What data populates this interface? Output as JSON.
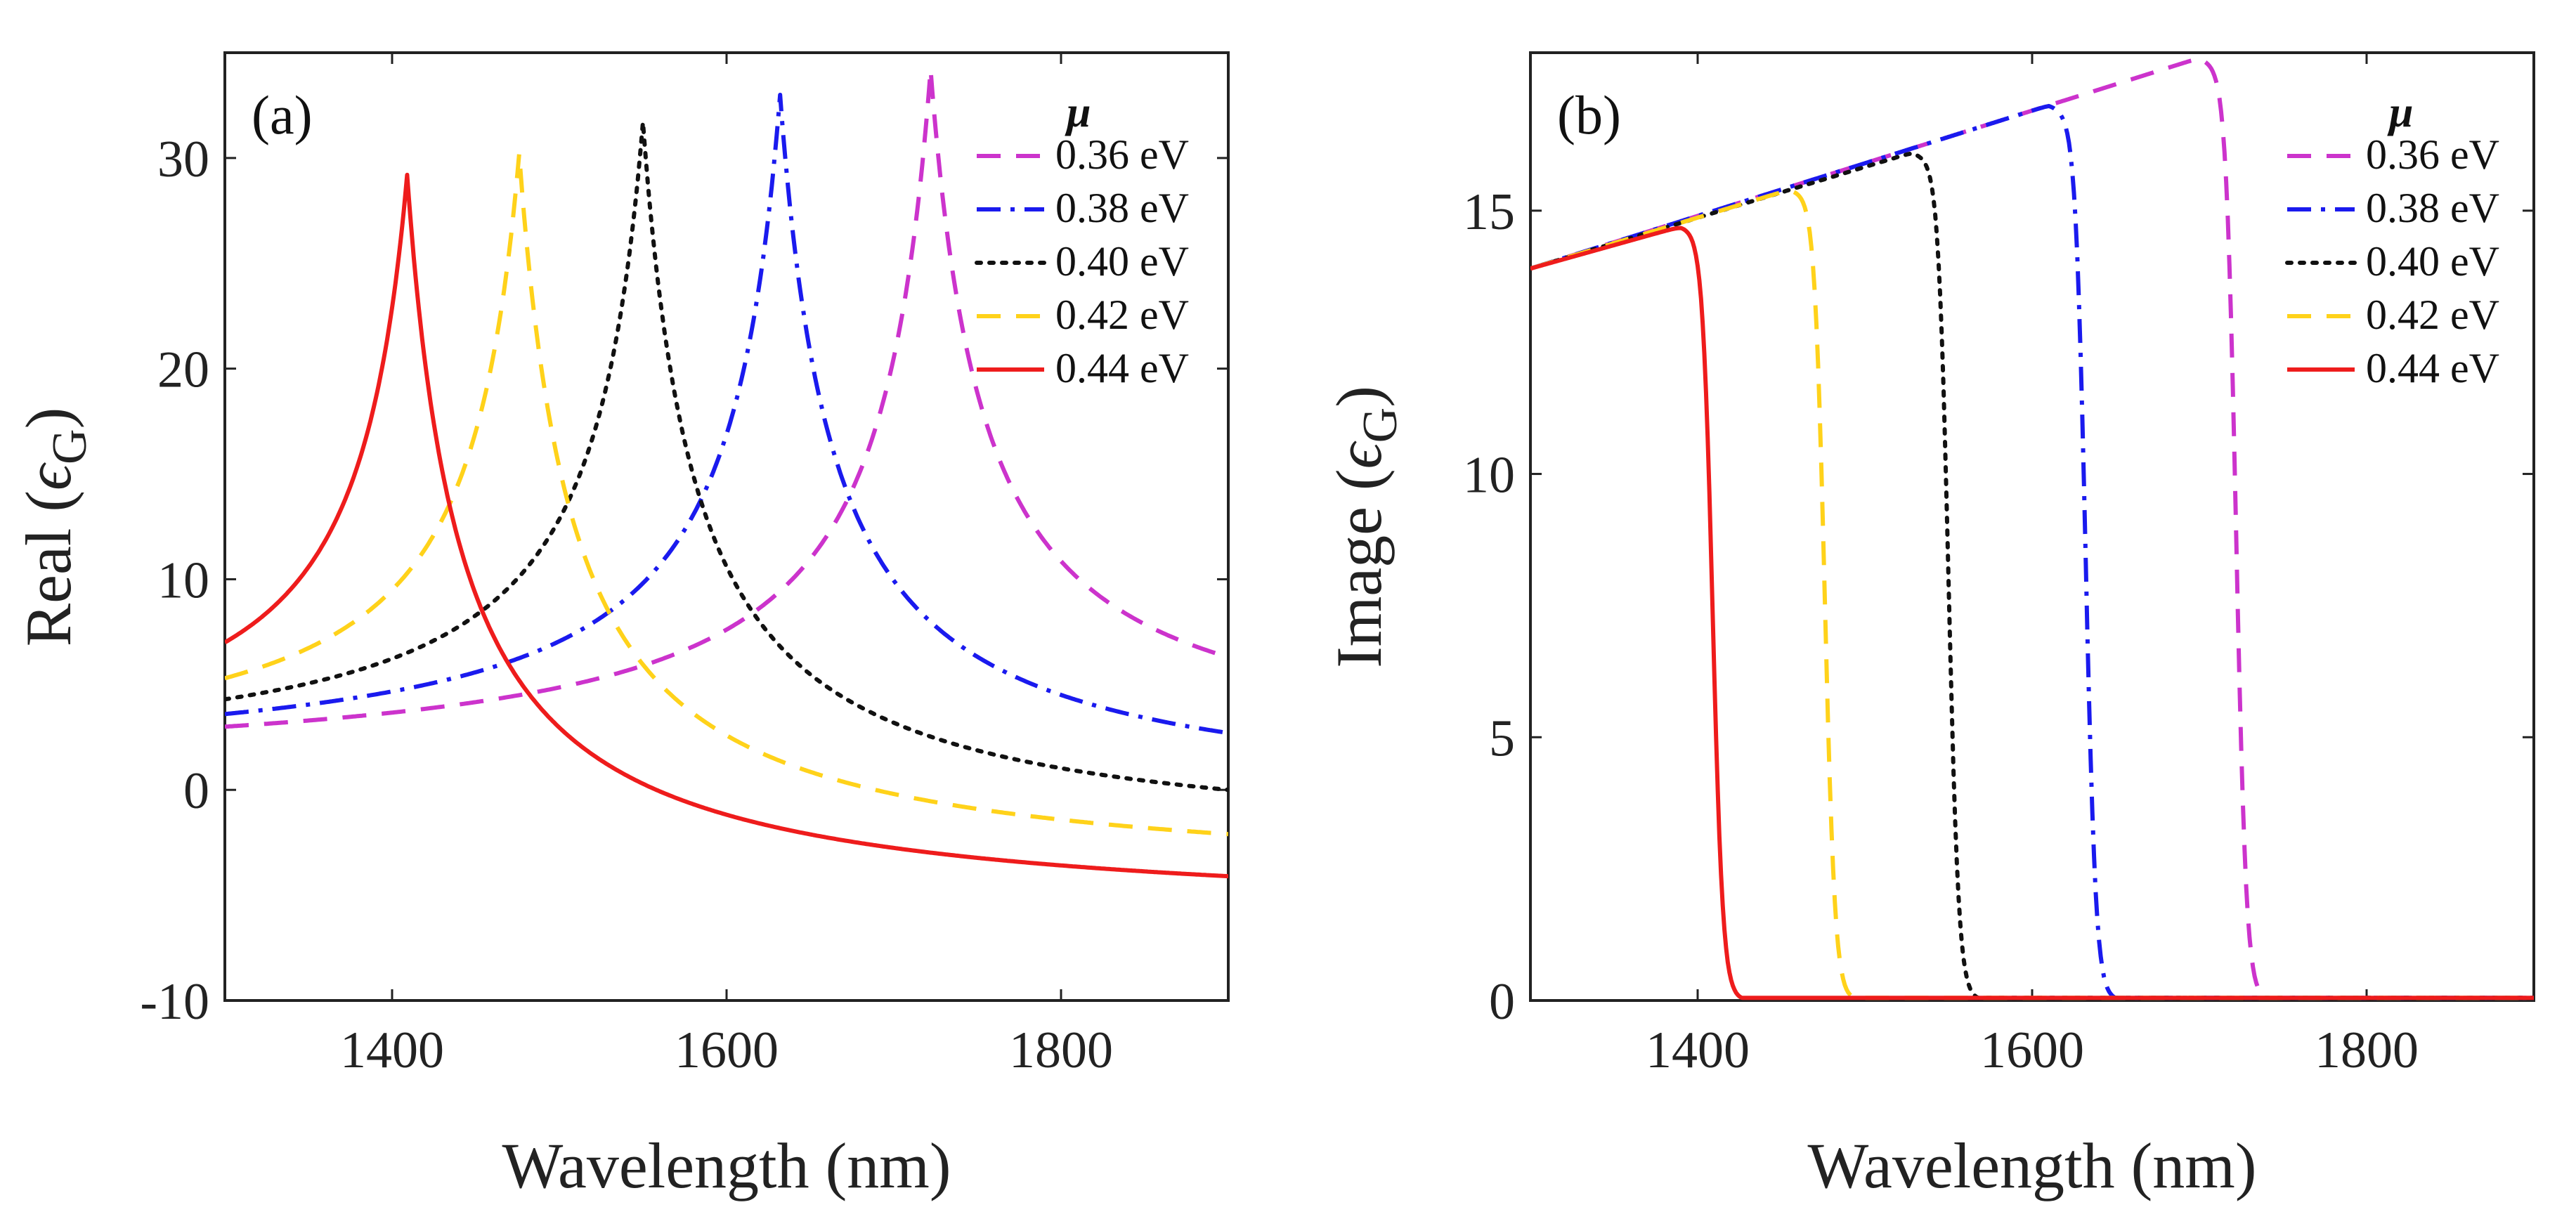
{
  "chart_data": [
    {
      "panel": "(a)",
      "type": "line",
      "xlabel": "Wavelength (nm)",
      "ylabel_main": "Real (",
      "ylabel_symbol": "ϵ",
      "ylabel_sub": "G",
      "ylabel_close": ")",
      "xlim": [
        1300,
        1900
      ],
      "ylim": [
        -10,
        35
      ],
      "xticks": [
        1400,
        1600,
        1800
      ],
      "yticks": [
        -10,
        0,
        10,
        20,
        30
      ],
      "ytick_labels": [
        "-10",
        "0",
        "10",
        "20",
        "30"
      ],
      "legend_title": "μ",
      "series": [
        {
          "name": "0.36 eV",
          "color": "#cc33cc",
          "dash": "dash",
          "peak_x": 1722,
          "peak_y": 34.2,
          "start_y": 3.0,
          "end_y": 6.3
        },
        {
          "name": "0.38 eV",
          "color": "#1a1aee",
          "dash": "dashdot",
          "peak_x": 1632,
          "peak_y": 33.0,
          "start_y": 3.6,
          "end_y": 2.7
        },
        {
          "name": "0.40 eV",
          "color": "#111111",
          "dash": "dot",
          "peak_x": 1550,
          "peak_y": 31.7,
          "start_y": 4.3,
          "end_y": 0.0
        },
        {
          "name": "0.42 eV",
          "color": "#ffd21a",
          "dash": "dash",
          "peak_x": 1476,
          "peak_y": 30.2,
          "start_y": 5.3,
          "end_y": -2.1
        },
        {
          "name": "0.44 eV",
          "color": "#ee1c1c",
          "dash": "solid",
          "peak_x": 1409,
          "peak_y": 29.2,
          "start_y": 7.0,
          "end_y": -4.1
        }
      ]
    },
    {
      "panel": "(b)",
      "type": "line",
      "xlabel": "Wavelength (nm)",
      "ylabel_main": "Image (",
      "ylabel_symbol": "ϵ",
      "ylabel_sub": "G",
      "ylabel_close": ")",
      "xlim": [
        1300,
        1900
      ],
      "ylim": [
        0,
        18
      ],
      "xticks": [
        1400,
        1600,
        1800
      ],
      "yticks": [
        0,
        5,
        10,
        15
      ],
      "ytick_labels": [
        "0",
        "5",
        "10",
        "15"
      ],
      "legend_title": "μ",
      "series": [
        {
          "name": "0.36 eV",
          "color": "#cc33cc",
          "dash": "dash",
          "peak_x": 1700,
          "peak_y": 17.9,
          "drop_x": 1722
        },
        {
          "name": "0.38 eV",
          "color": "#1a1aee",
          "dash": "dashdot",
          "peak_x": 1610,
          "peak_y": 17.0,
          "drop_x": 1632
        },
        {
          "name": "0.40 eV",
          "color": "#111111",
          "dash": "dot",
          "peak_x": 1528,
          "peak_y": 16.1,
          "drop_x": 1550
        },
        {
          "name": "0.42 eV",
          "color": "#ffd21a",
          "dash": "dash",
          "peak_x": 1455,
          "peak_y": 15.4,
          "drop_x": 1476
        },
        {
          "name": "0.44 eV",
          "color": "#ee1c1c",
          "dash": "solid",
          "peak_x": 1390,
          "peak_y": 14.7,
          "drop_x": 1409
        }
      ]
    }
  ]
}
